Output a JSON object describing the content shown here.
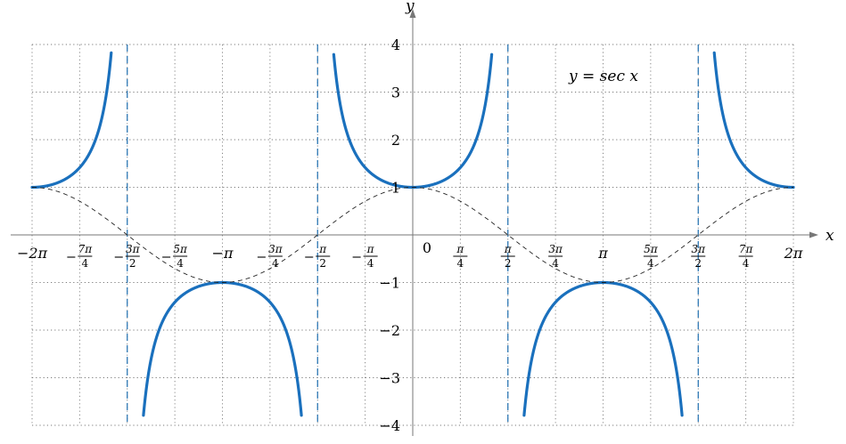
{
  "chart_data": {
    "type": "line",
    "title": "",
    "annotation": "y = sec x",
    "xlabel": "x",
    "ylabel": "y",
    "xlim": [
      -6.2832,
      6.2832
    ],
    "ylim": [
      -4,
      4
    ],
    "grid": true,
    "x_ticks": [
      {
        "value": -6.2832,
        "label": "−2π"
      },
      {
        "value": -5.4978,
        "num": "7π",
        "den": "4",
        "neg": true
      },
      {
        "value": -4.7124,
        "num": "3π",
        "den": "2",
        "neg": true
      },
      {
        "value": -3.927,
        "num": "5π",
        "den": "4",
        "neg": true
      },
      {
        "value": -3.1416,
        "label": "−π"
      },
      {
        "value": -2.3562,
        "num": "3π",
        "den": "4",
        "neg": true
      },
      {
        "value": -1.5708,
        "num": "π",
        "den": "2",
        "neg": true
      },
      {
        "value": -0.7854,
        "num": "π",
        "den": "4",
        "neg": true
      },
      {
        "value": 0,
        "label": "0"
      },
      {
        "value": 0.7854,
        "num": "π",
        "den": "4",
        "neg": false
      },
      {
        "value": 1.5708,
        "num": "π",
        "den": "2",
        "neg": false
      },
      {
        "value": 2.3562,
        "num": "3π",
        "den": "4",
        "neg": false
      },
      {
        "value": 3.1416,
        "label": "π"
      },
      {
        "value": 3.927,
        "num": "5π",
        "den": "4",
        "neg": false
      },
      {
        "value": 4.7124,
        "num": "3π",
        "den": "2",
        "neg": false
      },
      {
        "value": 5.4978,
        "num": "7π",
        "den": "4",
        "neg": false
      },
      {
        "value": 6.2832,
        "label": "2π"
      }
    ],
    "y_ticks": [
      {
        "value": 4,
        "label": "4"
      },
      {
        "value": 3,
        "label": "3"
      },
      {
        "value": 2,
        "label": "2"
      },
      {
        "value": 1,
        "label": "1"
      },
      {
        "value": -1,
        "label": "−1"
      },
      {
        "value": -2,
        "label": "−2"
      },
      {
        "value": -3,
        "label": "−3"
      },
      {
        "value": -4,
        "label": "−4"
      }
    ],
    "asymptotes_x": [
      -4.7124,
      -1.5708,
      1.5708,
      4.7124
    ],
    "series": [
      {
        "function": "sec",
        "domain": [
          -6.2832,
          6.2832
        ],
        "color": "#1a70bd",
        "style": "solid",
        "clip": [
          -3.85,
          3.85
        ]
      },
      {
        "function": "cos",
        "domain": [
          -6.2832,
          6.2832
        ],
        "color": "#222222",
        "style": "dashed"
      }
    ]
  }
}
